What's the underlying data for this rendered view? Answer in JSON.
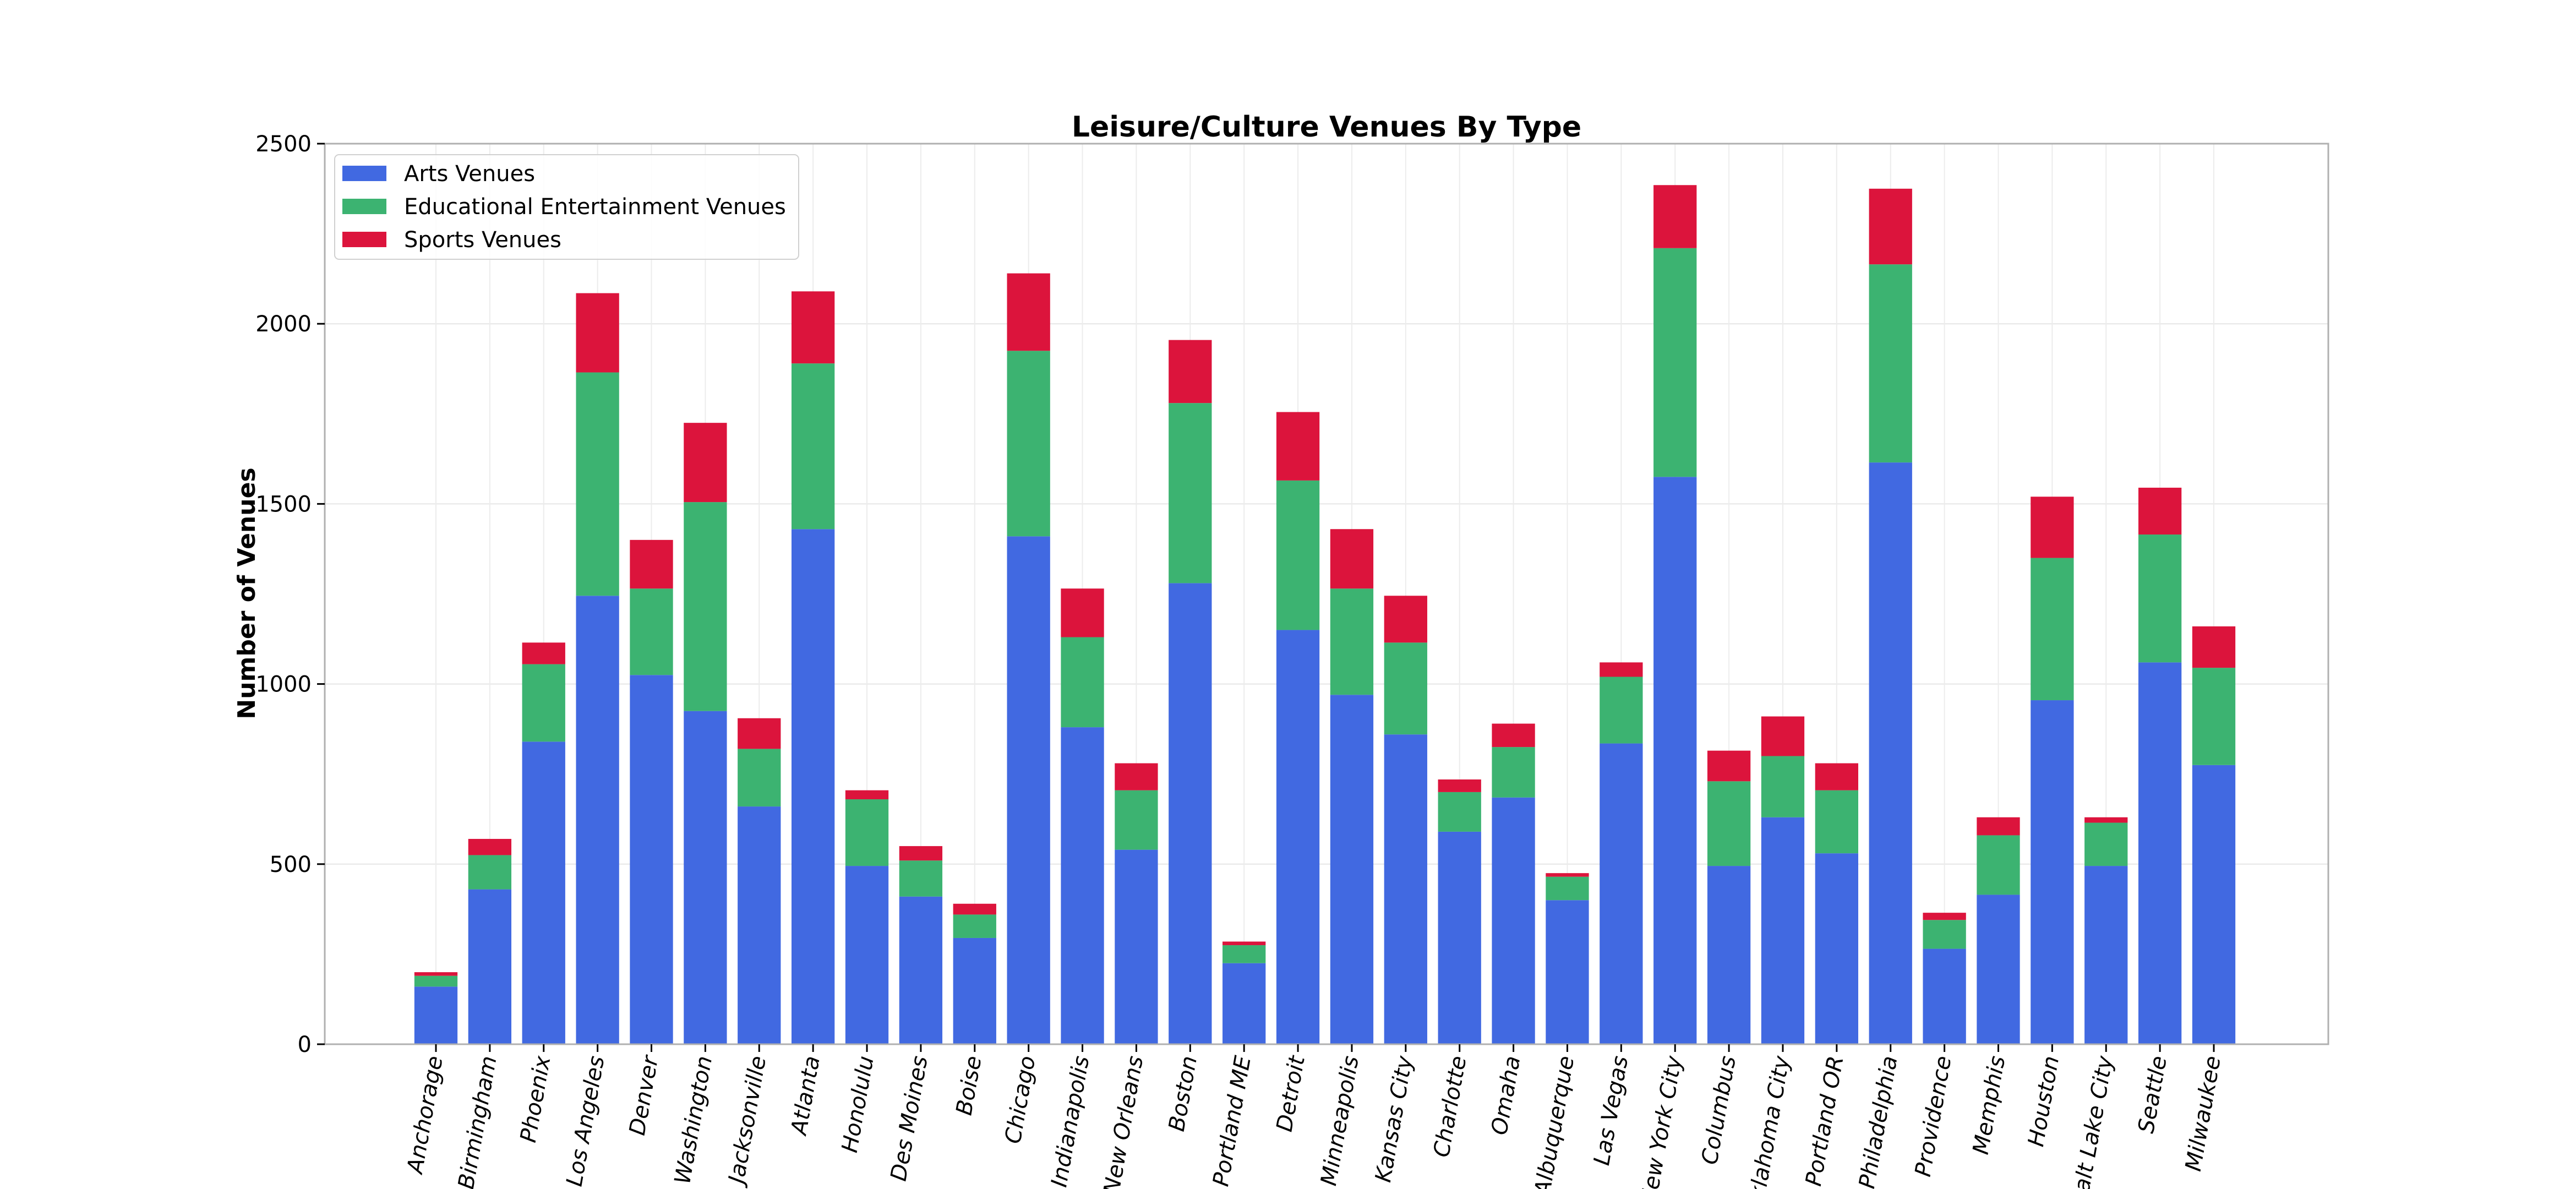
{
  "chart_data": {
    "type": "bar",
    "stacked": true,
    "title": "Leisure/Culture Venues By Type",
    "xlabel": "",
    "ylabel": "Number of Venues",
    "ylim": [
      0,
      2500
    ],
    "yticks": [
      0,
      500,
      1000,
      1500,
      2000,
      2500
    ],
    "grid": true,
    "legend_position": "top-left",
    "categories": [
      "Anchorage",
      "Birmingham",
      "Phoenix",
      "Los Angeles",
      "Denver",
      "Washington",
      "Jacksonville",
      "Atlanta",
      "Honolulu",
      "Des Moines",
      "Boise",
      "Chicago",
      "Indianapolis",
      "New Orleans",
      "Boston",
      "Portland ME",
      "Detroit",
      "Minneapolis",
      "Kansas City",
      "Charlotte",
      "Omaha",
      "Albuquerque",
      "Las Vegas",
      "New York City",
      "Columbus",
      "Oklahoma City",
      "Portland OR",
      "Philadelphia",
      "Providence",
      "Memphis",
      "Houston",
      "Salt Lake City",
      "Seattle",
      "Milwaukee"
    ],
    "series": [
      {
        "name": "Arts Venues",
        "color": "#4169E1",
        "values": [
          160,
          430,
          840,
          1245,
          1025,
          925,
          660,
          1430,
          495,
          410,
          295,
          1410,
          880,
          540,
          1280,
          225,
          1150,
          970,
          860,
          590,
          685,
          400,
          835,
          1575,
          495,
          630,
          530,
          1615,
          265,
          415,
          955,
          495,
          1060,
          775
        ]
      },
      {
        "name": "Educational Entertainment Venues",
        "color": "#3CB371",
        "values": [
          30,
          95,
          215,
          620,
          240,
          580,
          160,
          460,
          185,
          100,
          65,
          515,
          250,
          165,
          500,
          50,
          415,
          295,
          255,
          110,
          140,
          65,
          185,
          635,
          235,
          170,
          175,
          550,
          80,
          165,
          395,
          120,
          355,
          270
        ]
      },
      {
        "name": "Sports Venues",
        "color": "#DC143C",
        "values": [
          10,
          45,
          60,
          220,
          135,
          220,
          85,
          200,
          25,
          40,
          30,
          215,
          135,
          75,
          175,
          10,
          190,
          165,
          130,
          35,
          65,
          10,
          40,
          175,
          85,
          110,
          75,
          210,
          20,
          50,
          170,
          15,
          130,
          115
        ]
      }
    ]
  }
}
